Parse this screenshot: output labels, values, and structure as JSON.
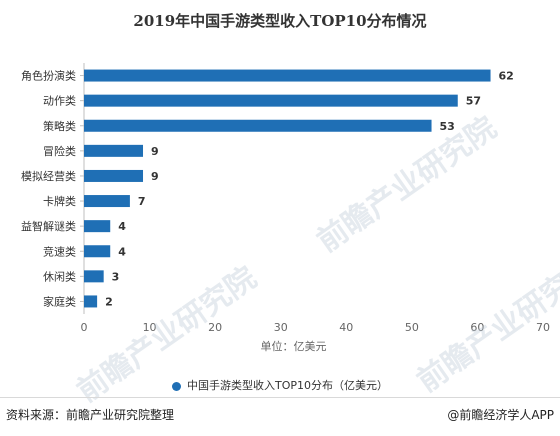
{
  "chart_data": {
    "type": "bar",
    "orientation": "horizontal",
    "title": "2019年中国手游类型收入TOP10分布情况",
    "categories": [
      "角色扮演类",
      "动作类",
      "策略类",
      "冒险类",
      "模拟经营类",
      "卡牌类",
      "益智解谜类",
      "竞速类",
      "休闲类",
      "家庭类"
    ],
    "series": [
      {
        "name": "中国手游类型收入TOP10分布（亿美元）",
        "values": [
          62,
          57,
          53,
          9,
          9,
          7,
          4,
          4,
          3,
          2
        ]
      }
    ],
    "xlabel": "单位：亿美元",
    "xlim": [
      0,
      70
    ],
    "xticks": [
      0,
      10,
      20,
      30,
      40,
      50,
      60,
      70
    ],
    "grid": false,
    "legend_position": "bottom",
    "bar_color": "#1f6fb5"
  },
  "legend_label": "中国手游类型收入TOP10分布（亿美元）",
  "footer": {
    "source": "资料来源：前瞻产业研究院整理",
    "brand": "@前瞻经济学人APP"
  },
  "watermark_text": "前瞻产业研究院"
}
